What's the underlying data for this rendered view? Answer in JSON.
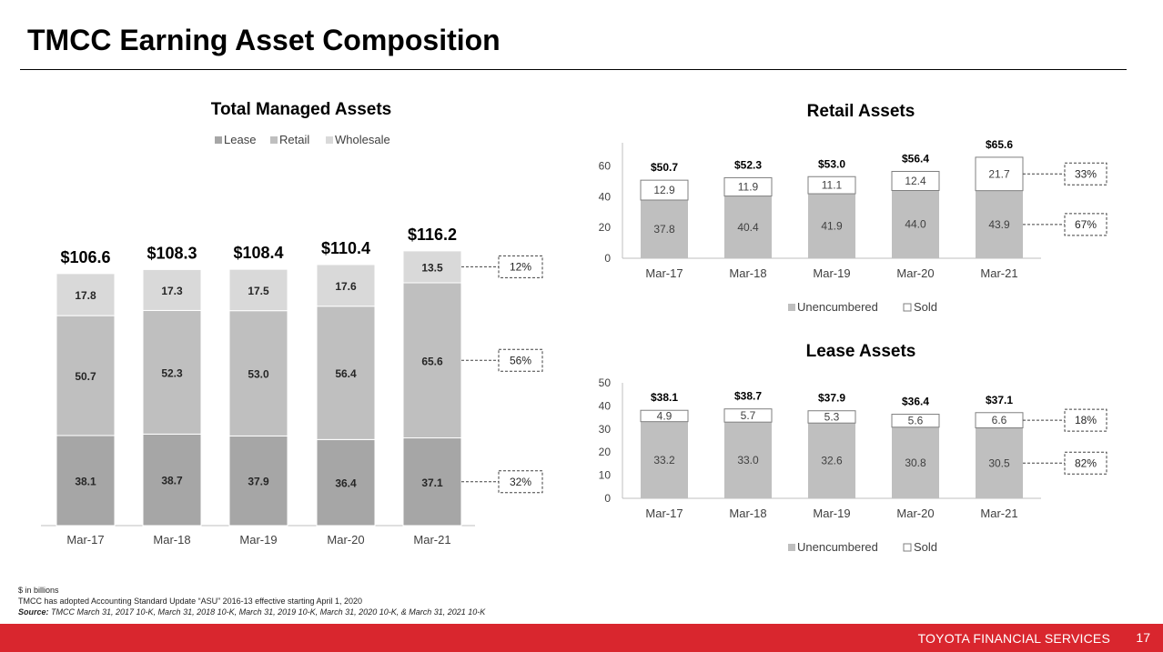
{
  "page": {
    "title": "TMCC Earning Asset Composition",
    "footnote_units": "$ in billions",
    "footnote_asu": "TMCC has adopted Accounting Standard Update “ASU” 2016-13 effective starting April 1, 2020",
    "source_label": "Source:",
    "source_text": " TMCC March 31, 2017 10-K, March 31, 2018 10-K, March 31, 2019 10-K, March 31, 2020 10-K, & March 31, 2021 10-K",
    "footer_brand": "TOYOTA FINANCIAL SERVICES",
    "page_number": "17"
  },
  "colors": {
    "lease": "#a6a6a6",
    "retail": "#bfbfbf",
    "wholesale": "#d9d9d9",
    "unencumbered": "#bfbfbf",
    "sold": "#ffffff",
    "footer": "#d9262e"
  },
  "chart_data": [
    {
      "type": "bar",
      "stacked": true,
      "title": "Total Managed Assets",
      "categories": [
        "Mar-17",
        "Mar-18",
        "Mar-19",
        "Mar-20",
        "Mar-21"
      ],
      "series": [
        {
          "name": "Lease",
          "values": [
            38.1,
            38.7,
            37.9,
            36.4,
            37.1
          ],
          "labels": [
            "38.1",
            "38.7",
            "37.9",
            "36.4",
            "37.1"
          ]
        },
        {
          "name": "Retail",
          "values": [
            50.7,
            52.3,
            53.0,
            56.4,
            65.6
          ],
          "labels": [
            "50.7",
            "52.3",
            "53.0",
            "56.4",
            "65.6"
          ]
        },
        {
          "name": "Wholesale",
          "values": [
            17.8,
            17.3,
            17.5,
            17.6,
            13.5
          ],
          "labels": [
            "17.8",
            "17.3",
            "17.5",
            "17.6",
            "13.5"
          ]
        }
      ],
      "totals": [
        "$106.6",
        "$108.3",
        "$108.4",
        "$110.4",
        "$116.2"
      ],
      "callouts": [
        "32%",
        "56%",
        "12%"
      ],
      "ylim": [
        0,
        120
      ],
      "grid": false,
      "legend_position": "top"
    },
    {
      "type": "bar",
      "stacked": true,
      "title": "Retail Assets",
      "categories": [
        "Mar-17",
        "Mar-18",
        "Mar-19",
        "Mar-20",
        "Mar-21"
      ],
      "series": [
        {
          "name": "Unencumbered",
          "values": [
            37.8,
            40.4,
            41.9,
            44.0,
            43.9
          ],
          "labels": [
            "37.8",
            "40.4",
            "41.9",
            "44.0",
            "43.9"
          ]
        },
        {
          "name": "Sold",
          "values": [
            12.9,
            11.9,
            11.1,
            12.4,
            21.7
          ],
          "labels": [
            "12.9",
            "11.9",
            "11.1",
            "12.4",
            "21.7"
          ]
        }
      ],
      "totals": [
        "$50.7",
        "$52.3",
        "$53.0",
        "$56.4",
        "$65.6"
      ],
      "callouts": [
        "67%",
        "33%"
      ],
      "yticks": [
        "0",
        "20",
        "40",
        "60"
      ],
      "ylim": [
        0,
        75
      ],
      "grid": false,
      "legend_position": "bottom"
    },
    {
      "type": "bar",
      "stacked": true,
      "title": "Lease Assets",
      "categories": [
        "Mar-17",
        "Mar-18",
        "Mar-19",
        "Mar-20",
        "Mar-21"
      ],
      "series": [
        {
          "name": "Unencumbered",
          "values": [
            33.2,
            33.0,
            32.6,
            30.8,
            30.5
          ],
          "labels": [
            "33.2",
            "33.0",
            "32.6",
            "30.8",
            "30.5"
          ]
        },
        {
          "name": "Sold",
          "values": [
            4.9,
            5.7,
            5.3,
            5.6,
            6.6
          ],
          "labels": [
            "4.9",
            "5.7",
            "5.3",
            "5.6",
            "6.6"
          ]
        }
      ],
      "totals": [
        "$38.1",
        "$38.7",
        "$37.9",
        "$36.4",
        "$37.1"
      ],
      "callouts": [
        "82%",
        "18%"
      ],
      "yticks": [
        "0",
        "10",
        "20",
        "30",
        "40",
        "50"
      ],
      "ylim": [
        0,
        50
      ],
      "grid": false,
      "legend_position": "bottom"
    }
  ]
}
